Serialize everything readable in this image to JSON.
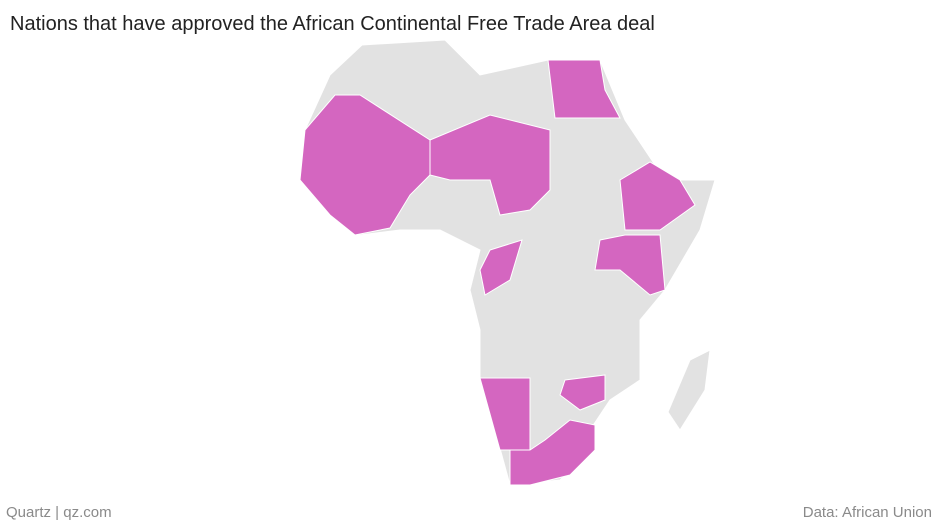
{
  "title": "Nations that have approved the African Continental Free Trade Area deal",
  "credit": "Quartz | qz.com",
  "source": "Data: African Union"
}
